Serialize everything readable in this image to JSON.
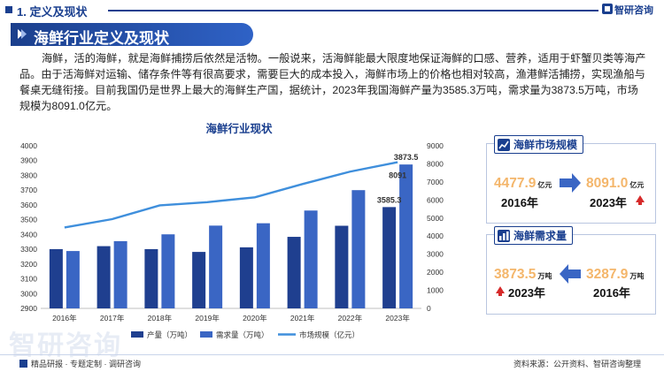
{
  "header": {
    "section_title": "1. 定义及现状",
    "logo_text": "智研咨询",
    "banner_title": "海鲜行业定义及现状"
  },
  "intro_text": "海鲜，活的海鲜，就是海鲜捕捞后依然是活物。一般说来，活海鲜能最大限度地保证海鲜的口感、营养，适用于虾蟹贝类等海产品。由于活海鲜对运输、储存条件等有很高要求，需要巨大的成本投入，海鲜市场上的价格也相对较高，渔港鲜活捕捞，实现渔船与餐桌无缝衔接。目前我国仍是世界上最大的海鲜生产国，据统计，2023年我国海鲜产量为3585.3万吨，需求量为3873.5万吨，市场规模为8091.0亿元。",
  "chart_data": {
    "type": "bar",
    "title": "海鲜行业现状",
    "categories": [
      "2016年",
      "2017年",
      "2018年",
      "2019年",
      "2020年",
      "2021年",
      "2022年",
      "2023年"
    ],
    "series": [
      {
        "name": "产量（万吨）",
        "type": "bar",
        "axis": "left",
        "color": "#1f3f8f",
        "values": [
          3301,
          3321,
          3301,
          3282,
          3313,
          3384,
          3459,
          3585.3
        ]
      },
      {
        "name": "需求量（万吨）",
        "type": "bar",
        "axis": "left",
        "color": "#3a66c4",
        "values": [
          3288,
          3355,
          3401,
          3460,
          3476,
          3562,
          3700,
          3873.5
        ]
      },
      {
        "name": "市场规模（亿元）",
        "type": "line",
        "axis": "right",
        "color": "#3f8fdc",
        "values": [
          4478,
          4940,
          5700,
          5880,
          6150,
          6880,
          7570,
          8091
        ]
      }
    ],
    "data_labels": [
      {
        "series": 0,
        "index": 7,
        "text": "3585.3"
      },
      {
        "series": 1,
        "index": 7,
        "text": "3873.5"
      },
      {
        "series": 2,
        "index": 7,
        "text": "8091"
      }
    ],
    "y_left": {
      "min": 2900,
      "max": 4000,
      "ticks": [
        "2900",
        "3000",
        "3100",
        "3200",
        "3300",
        "3400",
        "3500",
        "3600",
        "3700",
        "3800",
        "3900",
        "4000"
      ]
    },
    "y_right": {
      "min": 0,
      "max": 9000,
      "ticks": [
        "0",
        "1000",
        "2000",
        "3000",
        "4000",
        "5000",
        "6000",
        "7000",
        "8000",
        "9000"
      ]
    },
    "grid": false,
    "legend_position": "bottom"
  },
  "market_panel": {
    "title": "海鲜市场规模",
    "left_value": "4477.9",
    "left_unit": "亿元",
    "left_year": "2016年",
    "right_value": "8091.0",
    "right_unit": "亿元",
    "right_year": "2023年"
  },
  "demand_panel": {
    "title": "海鲜需求量",
    "left_value": "3873.5",
    "left_unit": "万吨",
    "left_year": "2023年",
    "right_value": "3287.9",
    "right_unit": "万吨",
    "right_year": "2016年"
  },
  "footer": {
    "left_text": "精品研报 · 专题定制 · 调研咨询",
    "source_text": "资料来源：公开资料、智研咨询整理"
  },
  "watermark": "智研咨询",
  "colors": {
    "brand": "#1a3f8f",
    "accent_orange": "#f4b66b",
    "up_arrow": "#d62a2a"
  }
}
